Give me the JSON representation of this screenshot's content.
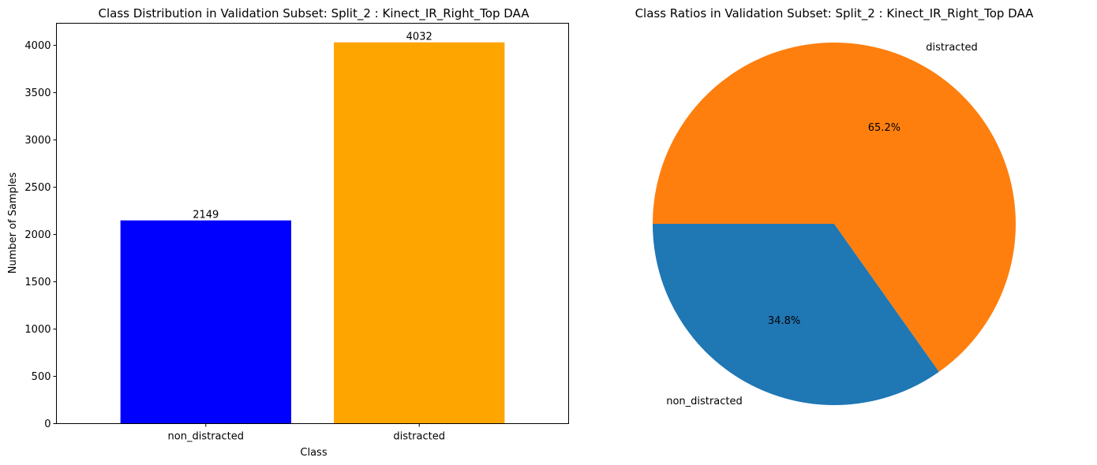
{
  "chart_data": [
    {
      "type": "bar",
      "title": "Class Distribution in Validation Subset: Split_2 : Kinect_IR_Right_Top DAA",
      "xlabel": "Class",
      "ylabel": "Number of Samples",
      "categories": [
        "non_distracted",
        "distracted"
      ],
      "values": [
        2149,
        4032
      ],
      "value_labels": [
        "2149",
        "4032"
      ],
      "colors": [
        "#0000ff",
        "#ffa500"
      ],
      "ylim": [
        0,
        4234
      ],
      "yticks": [
        0,
        500,
        1000,
        1500,
        2000,
        2500,
        3000,
        3500,
        4000
      ],
      "grid": false,
      "legend": "none"
    },
    {
      "type": "pie",
      "title": "Class Ratios in Validation Subset: Split_2 : Kinect_IR_Right_Top DAA",
      "labels": [
        "non_distracted",
        "distracted"
      ],
      "values": [
        34.8,
        65.2
      ],
      "pct_labels": [
        "34.8%",
        "65.2%"
      ],
      "colors": [
        "#1f77b4",
        "#ff7f0e"
      ],
      "start_angle_deg": 180,
      "legend": "none"
    }
  ]
}
